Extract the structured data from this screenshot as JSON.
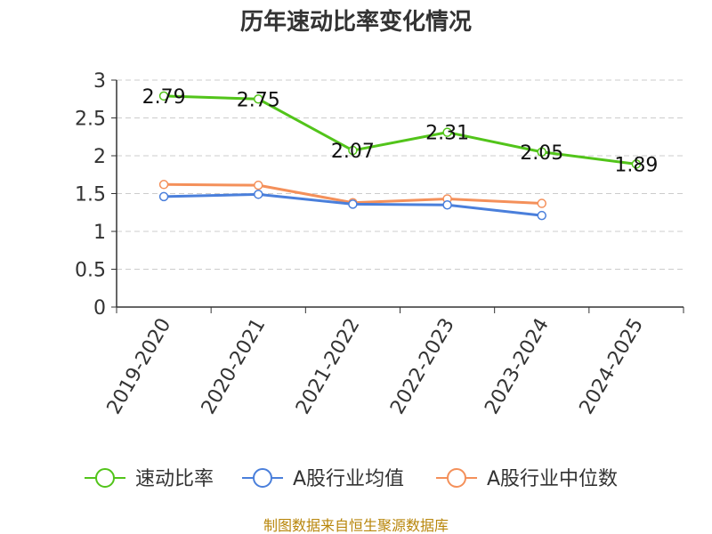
{
  "chart_data": {
    "type": "line",
    "title": "历年速动比率变化情况",
    "categories": [
      "2019-2020",
      "2020-2021",
      "2021-2022",
      "2022-2023",
      "2023-2024",
      "2024-2025"
    ],
    "ylim": [
      0,
      3
    ],
    "yticks": [
      "0",
      "0.5",
      "1",
      "1.5",
      "2",
      "2.5",
      "3"
    ],
    "grid": true,
    "legend_position": "bottom",
    "series": [
      {
        "name": "速动比率",
        "color": "#52c41a",
        "values": [
          2.79,
          2.75,
          2.07,
          2.31,
          2.05,
          1.89
        ],
        "labels": [
          "2.79",
          "2.75",
          "2.07",
          "2.31",
          "2.05",
          "1.89"
        ]
      },
      {
        "name": "A股行业均值",
        "color": "#4a7fdb",
        "values": [
          1.46,
          1.49,
          1.36,
          1.35,
          1.21,
          null
        ]
      },
      {
        "name": "A股行业中位数",
        "color": "#f4905a",
        "values": [
          1.62,
          1.61,
          1.38,
          1.43,
          1.37,
          null
        ]
      }
    ],
    "source": "制图数据来自恒生聚源数据库"
  }
}
